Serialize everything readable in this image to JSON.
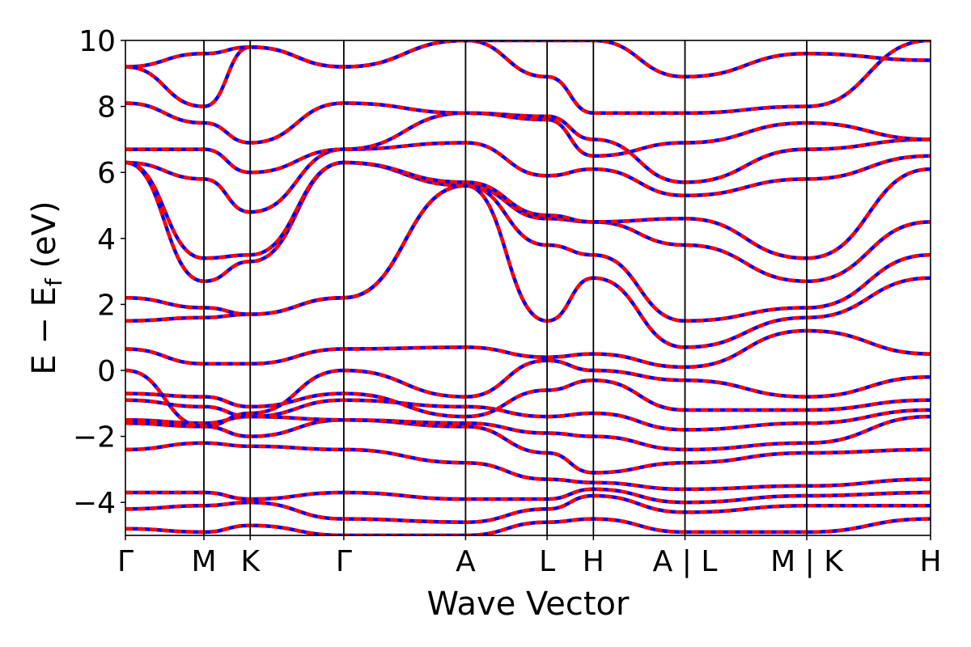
{
  "chart_data": {
    "type": "line",
    "title": "",
    "xlabel": "Wave Vector",
    "ylabel": "E − E_f (eV)",
    "ylabel_parts": {
      "main": "E − E",
      "sub": "f",
      "unit": "(eV)"
    },
    "ylim": [
      -5,
      10
    ],
    "xlim": [
      0,
      8.0
    ],
    "yticks": [
      -4,
      -2,
      0,
      2,
      4,
      6,
      8,
      10
    ],
    "ytick_labels": [
      "−4",
      "−2",
      "0",
      "2",
      "4",
      "6",
      "8",
      "10"
    ],
    "grid": false,
    "kpoints": [
      {
        "label": "Γ",
        "x": 0.0
      },
      {
        "label": "M",
        "x": 0.78
      },
      {
        "label": "K",
        "x": 1.24
      },
      {
        "label": "Γ",
        "x": 2.17
      },
      {
        "label": "A",
        "x": 3.38
      },
      {
        "label": "L",
        "x": 4.19
      },
      {
        "label": "H",
        "x": 4.65
      },
      {
        "label": "A | L",
        "x": 5.56
      },
      {
        "label": "M | K",
        "x": 6.77
      },
      {
        "label": "H",
        "x": 8.0
      }
    ],
    "series_style": {
      "band": "#ff0000",
      "overlay": "#0000ff"
    },
    "bands": [
      {
        "x": [
          0,
          0.78,
          1.24,
          2.17,
          3.38,
          4.19,
          4.65,
          5.56,
          6.77,
          8.0
        ],
        "y": [
          -4.8,
          -4.9,
          -4.7,
          -5.0,
          -5.0,
          -4.6,
          -4.5,
          -4.9,
          -4.9,
          -4.5
        ]
      },
      {
        "x": [
          0,
          0.78,
          1.24,
          2.17,
          3.38,
          4.19,
          4.65,
          5.56,
          6.77,
          8.0
        ],
        "y": [
          -4.2,
          -4.1,
          -4.0,
          -4.5,
          -4.6,
          -4.2,
          -3.8,
          -4.3,
          -4.1,
          -4.1
        ]
      },
      {
        "x": [
          0,
          0.78,
          1.24,
          2.17,
          3.38,
          4.19,
          4.65,
          5.56,
          6.77,
          8.0
        ],
        "y": [
          -3.7,
          -3.7,
          -3.9,
          -3.7,
          -3.9,
          -3.9,
          -3.6,
          -4.0,
          -3.8,
          -3.7
        ]
      },
      {
        "x": [
          0,
          0.78,
          1.24,
          2.17,
          3.38,
          4.19,
          4.65,
          5.56,
          6.77,
          8.0
        ],
        "y": [
          -2.4,
          -2.2,
          -2.3,
          -2.4,
          -2.8,
          -3.3,
          -3.4,
          -3.6,
          -3.5,
          -3.3
        ]
      },
      {
        "x": [
          0,
          0.78,
          1.24,
          2.17,
          3.38,
          4.19,
          4.65,
          5.56,
          6.77,
          8.0
        ],
        "y": [
          -1.6,
          -1.7,
          -2.0,
          -1.5,
          -1.7,
          -2.5,
          -3.1,
          -2.8,
          -2.5,
          -2.4
        ]
      },
      {
        "x": [
          0,
          0.78,
          1.24,
          2.17,
          3.38,
          4.19,
          4.65,
          5.56,
          6.77,
          8.0
        ],
        "y": [
          -1.5,
          -1.6,
          -1.4,
          -1.5,
          -1.6,
          -1.9,
          -2.0,
          -2.4,
          -2.2,
          -1.4
        ]
      },
      {
        "x": [
          0,
          0.78,
          1.24,
          2.17,
          3.38,
          4.19,
          4.65,
          5.56,
          6.77,
          8.0
        ],
        "y": [
          -0.9,
          -1.1,
          -1.4,
          -0.9,
          -1.1,
          -1.4,
          -1.3,
          -1.8,
          -1.6,
          -1.2
        ]
      },
      {
        "x": [
          0,
          0.78,
          1.24,
          2.17,
          3.38,
          4.19,
          4.65,
          5.56,
          6.77,
          8.0
        ],
        "y": [
          -0.7,
          -0.8,
          -1.1,
          -0.7,
          -1.4,
          -0.6,
          -0.3,
          -1.2,
          -1.2,
          -0.9
        ]
      },
      {
        "x": [
          0,
          0.78,
          1.24,
          2.17,
          3.38,
          4.19,
          4.65,
          5.56,
          6.77,
          8.0
        ],
        "y": [
          0.0,
          -1.7,
          -1.3,
          0.0,
          -0.8,
          0.3,
          0.0,
          -0.3,
          -0.8,
          -0.2
        ]
      },
      {
        "x": [
          0,
          0.78,
          1.24,
          2.17,
          3.38,
          4.19,
          4.65,
          5.56,
          6.77,
          8.0
        ],
        "y": [
          0.65,
          0.2,
          0.2,
          0.65,
          0.7,
          0.4,
          0.5,
          0.1,
          1.2,
          0.5
        ]
      },
      {
        "x": [
          0,
          0.78,
          1.24,
          2.17,
          3.38,
          4.19,
          4.65,
          5.56,
          6.77,
          8.0
        ],
        "y": [
          1.5,
          1.6,
          1.7,
          2.2,
          5.6,
          1.5,
          2.8,
          0.7,
          1.6,
          2.8
        ]
      },
      {
        "x": [
          0,
          0.78,
          1.24,
          2.17,
          3.38,
          4.19,
          4.65,
          5.56,
          6.77,
          8.0
        ],
        "y": [
          2.2,
          1.9,
          1.7,
          2.2,
          5.6,
          3.8,
          3.5,
          1.5,
          1.9,
          3.5
        ]
      },
      {
        "x": [
          0,
          0.78,
          1.24,
          2.17,
          3.38,
          4.19,
          4.65,
          5.56,
          6.77,
          8.0
        ],
        "y": [
          6.3,
          2.7,
          3.3,
          6.3,
          5.6,
          4.6,
          4.5,
          3.8,
          2.7,
          4.5
        ]
      },
      {
        "x": [
          0,
          0.78,
          1.24,
          2.17,
          3.38,
          4.19,
          4.65,
          5.56,
          6.77,
          8.0
        ],
        "y": [
          6.3,
          3.4,
          3.5,
          6.3,
          5.7,
          4.7,
          4.5,
          4.6,
          3.4,
          6.1
        ]
      },
      {
        "x": [
          0,
          0.78,
          1.24,
          2.17,
          3.38,
          4.19,
          4.65,
          5.56,
          6.77,
          8.0
        ],
        "y": [
          6.3,
          5.8,
          4.8,
          6.7,
          6.9,
          5.9,
          6.1,
          5.3,
          5.8,
          6.5
        ]
      },
      {
        "x": [
          0,
          0.78,
          1.24,
          2.17,
          3.38,
          4.19,
          4.65,
          5.56,
          6.77,
          8.0
        ],
        "y": [
          6.7,
          6.7,
          6.0,
          6.7,
          7.8,
          7.7,
          7.0,
          5.7,
          6.7,
          7.0
        ]
      },
      {
        "x": [
          0,
          0.78,
          1.24,
          2.17,
          3.38,
          4.19,
          4.65,
          5.56,
          6.77,
          8.0
        ],
        "y": [
          8.1,
          7.5,
          6.9,
          8.1,
          7.8,
          7.6,
          6.5,
          6.9,
          7.5,
          7.0
        ]
      },
      {
        "x": [
          0,
          0.78,
          1.24,
          2.17,
          3.38,
          4.19,
          4.65,
          5.56,
          6.77,
          8.0
        ],
        "y": [
          9.2,
          8.0,
          9.8,
          9.2,
          10.0,
          8.9,
          7.8,
          7.8,
          8.0,
          10.0
        ]
      },
      {
        "x": [
          0,
          0.78,
          1.24,
          2.17,
          3.38,
          4.19,
          4.65,
          5.56,
          6.77,
          8.0
        ],
        "y": [
          9.2,
          9.6,
          9.8,
          9.2,
          10.0,
          10.0,
          10.0,
          8.9,
          9.6,
          9.4
        ]
      }
    ]
  }
}
